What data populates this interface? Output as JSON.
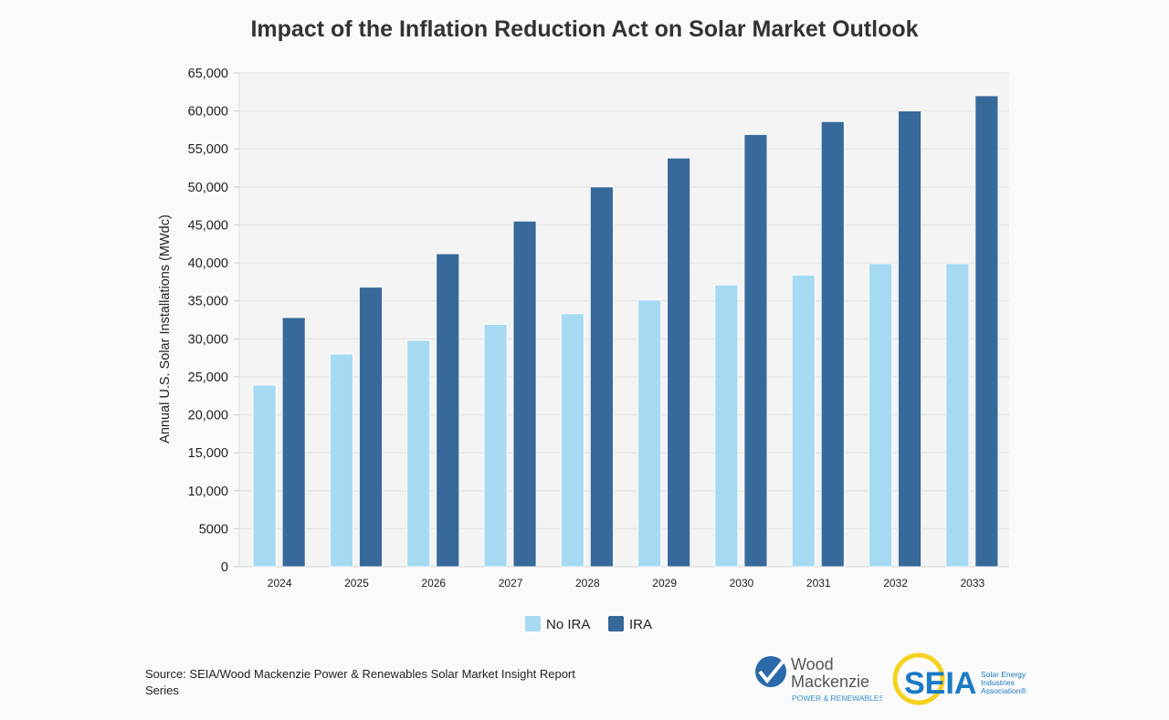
{
  "chart_data": {
    "type": "bar",
    "title": "Impact of the Inflation Reduction Act on Solar Market Outlook",
    "xlabel": "",
    "ylabel": "Annual U.S. Solar Installations (MWdc)",
    "ylim": [
      0,
      65000
    ],
    "yticks": [
      0,
      5000,
      10000,
      15000,
      20000,
      25000,
      30000,
      35000,
      40000,
      45000,
      50000,
      55000,
      60000,
      65000
    ],
    "ytick_labels": [
      "0",
      "5000",
      "10,000",
      "15,000",
      "20,000",
      "25,000",
      "30,000",
      "35,000",
      "40,000",
      "45,000",
      "50,000",
      "55,000",
      "60,000",
      "65,000"
    ],
    "grid": true,
    "legend_placement": "bottom-center",
    "categories": [
      "2024",
      "2025",
      "2026",
      "2027",
      "2028",
      "2029",
      "2030",
      "2031",
      "2032",
      "2033"
    ],
    "series": [
      {
        "name": "No IRA",
        "color": "#a6daf2",
        "values": [
          23900,
          28000,
          29800,
          31900,
          33300,
          35100,
          37100,
          38400,
          39900,
          39900
        ]
      },
      {
        "name": "IRA",
        "color": "#37699a",
        "values": [
          32800,
          36800,
          41200,
          45500,
          50000,
          53800,
          56900,
          58600,
          60000,
          62000
        ]
      }
    ]
  },
  "source": "Source: SEIA/Wood Mackenzie Power & Renewables Solar Market Insight Report Series",
  "logos": {
    "woodmac": {
      "line1": "Wood",
      "line2": "Mackenzie",
      "tagline": "POWER & RENEWABLES"
    },
    "seia": {
      "mark": "SEIA",
      "line1": "Solar Energy",
      "line2": "Industries",
      "line3": "Association®"
    }
  }
}
